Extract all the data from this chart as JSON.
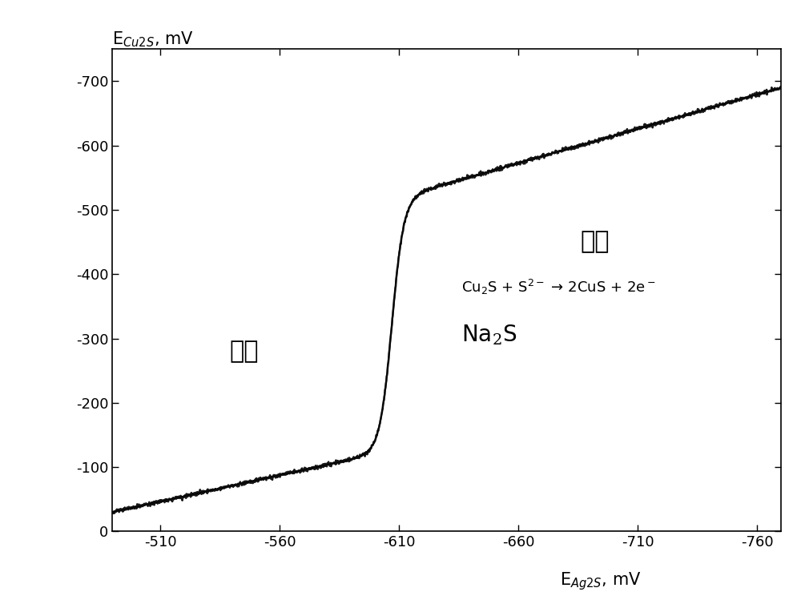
{
  "xlim_left": -490,
  "xlim_right": -770,
  "ylim_bottom": 0,
  "ylim_top": -750,
  "xticks": [
    -510,
    -560,
    -610,
    -660,
    -710,
    -760
  ],
  "yticks": [
    0,
    -100,
    -200,
    -300,
    -400,
    -500,
    -600,
    -700
  ],
  "annotation1": "浮选",
  "annotation2": "抑制",
  "na2s_label": "Na$_2$S",
  "reaction_label": "Cu$_2$S + S$^{2-}$ → 2CuS + 2e$^-$",
  "ylabel_label": "E$_{Cu2S}$, mV",
  "xlabel_label": "E$_{Ag2S}$, mV",
  "line_color": "#000000",
  "background_color": "#ffffff",
  "fig_width": 10.0,
  "fig_height": 7.54
}
